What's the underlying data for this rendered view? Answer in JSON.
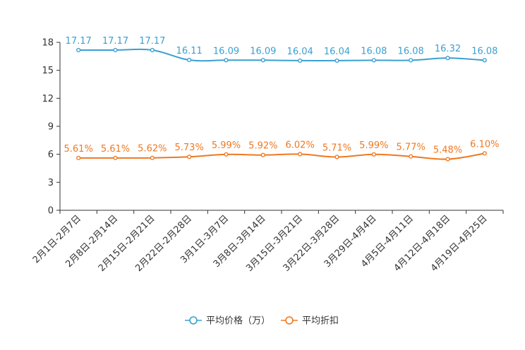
{
  "chart_data": {
    "type": "line",
    "title": "",
    "xlabel": "",
    "ylabel": "",
    "ylim": [
      0,
      18
    ],
    "yticks": [
      0,
      3,
      6,
      9,
      12,
      15,
      18
    ],
    "grid": false,
    "legend_position": "bottom-center",
    "categories": [
      "2月1日-2月7日",
      "2月8日-2月14日",
      "2月15日-2月21日",
      "2月22日-2月28日",
      "3月1日-3月7日",
      "3月8日-3月14日",
      "3月15日-3月21日",
      "3月22日-3月28日",
      "3月29日-4月4日",
      "4月5日-4月11日",
      "4月12日-4月18日",
      "4月19日-4月25日"
    ],
    "series": [
      {
        "name": "平均价格（万）",
        "color": "#3aa0d0",
        "values": [
          17.17,
          17.17,
          17.17,
          16.11,
          16.09,
          16.09,
          16.04,
          16.04,
          16.08,
          16.08,
          16.32,
          16.08
        ],
        "labels": [
          "17.17",
          "17.17",
          "17.17",
          "16.11",
          "16.09",
          "16.09",
          "16.04",
          "16.04",
          "16.08",
          "16.08",
          "16.32",
          "16.08"
        ]
      },
      {
        "name": "平均折扣",
        "color": "#f07820",
        "values": [
          5.61,
          5.61,
          5.62,
          5.73,
          5.99,
          5.92,
          6.02,
          5.71,
          5.99,
          5.77,
          5.48,
          6.1
        ],
        "labels": [
          "5.61%",
          "5.61%",
          "5.62%",
          "5.73%",
          "5.99%",
          "5.92%",
          "6.02%",
          "5.71%",
          "5.99%",
          "5.77%",
          "5.48%",
          "6.10%"
        ]
      }
    ]
  }
}
